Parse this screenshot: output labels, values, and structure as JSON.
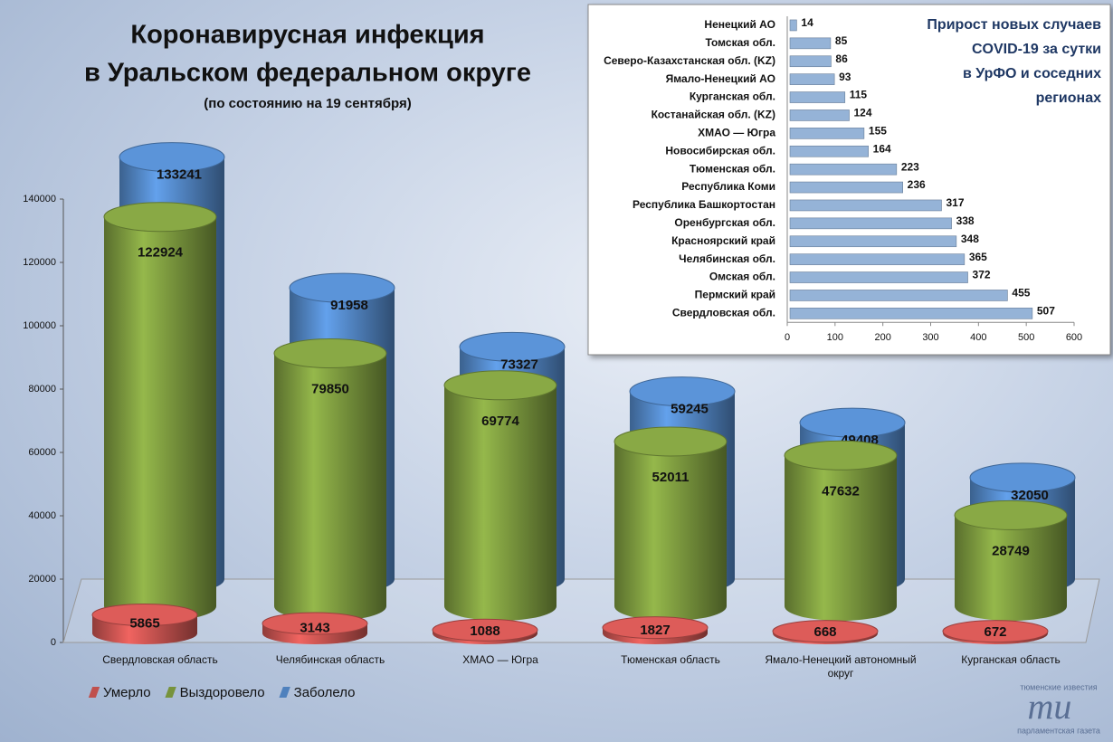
{
  "chart_data": [
    {
      "type": "bar",
      "title": [
        "Коронавирусная инфекция",
        "в Уральском федеральном округе"
      ],
      "subtitle": "(по состоянию на 19 сентября)",
      "categories": [
        "Свердловская область",
        "Челябинская область",
        "ХМАО — Югра",
        "Тюменская область",
        "Ямало-Ненецкий автономный округ",
        "Курганская область"
      ],
      "series": [
        {
          "name": "Умерло",
          "color": "#c0504d",
          "values": [
            5865,
            3143,
            1088,
            1827,
            668,
            672
          ]
        },
        {
          "name": "Выздоровело",
          "color": "#77933c",
          "values": [
            122924,
            79850,
            69774,
            52011,
            47632,
            28749
          ]
        },
        {
          "name": "Заболело",
          "color": "#4f81bd",
          "values": [
            133241,
            91958,
            73327,
            59245,
            49408,
            32050
          ]
        }
      ],
      "ylim": [
        0,
        140000
      ],
      "yticks": [
        0,
        20000,
        40000,
        60000,
        80000,
        100000,
        120000,
        140000
      ],
      "legend": "bottom"
    },
    {
      "type": "bar",
      "orientation": "horizontal",
      "title": [
        "Прирост новых случаев",
        "COVID-19 за сутки",
        "в УрФО и соседних",
        "регионах"
      ],
      "categories": [
        "Ненецкий АО",
        "Томская обл.",
        "Северо-Казахстанская обл. (KZ)",
        "Ямало-Ненецкий АО",
        "Курганская обл.",
        "Костанайская обл. (KZ)",
        "ХМАО — Югра",
        "Новосибирская обл.",
        "Тюменская обл.",
        "Республика Коми",
        "Республика Башкортостан",
        "Оренбургская обл.",
        "Красноярский край",
        "Челябинская обл.",
        "Омская обл.",
        "Пермский край",
        "Свердловская обл."
      ],
      "values": [
        14,
        85,
        86,
        93,
        115,
        124,
        155,
        164,
        223,
        236,
        317,
        338,
        348,
        365,
        372,
        455,
        507
      ],
      "color": "#95b3d7",
      "xlim": [
        0,
        600
      ],
      "xticks": [
        0,
        100,
        200,
        300,
        400,
        500,
        600
      ]
    }
  ],
  "logo": {
    "top": "тюменские известия",
    "mark": "ти",
    "bottom": "парламентская газета"
  }
}
